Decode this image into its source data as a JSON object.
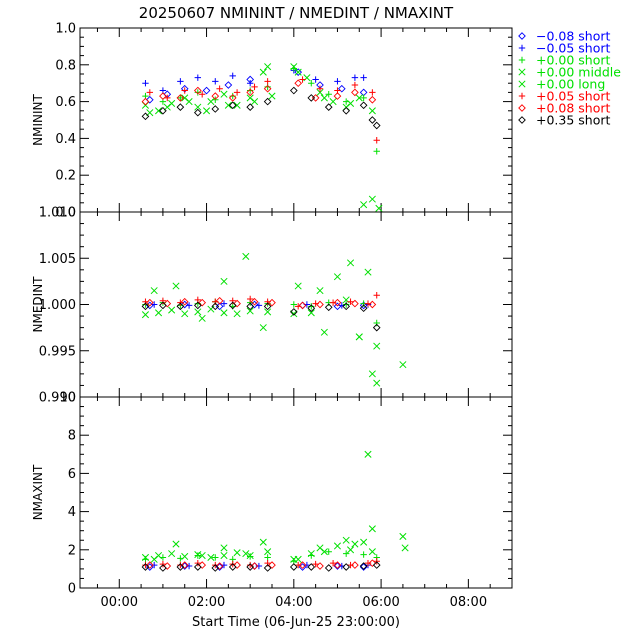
{
  "title": "20250607  NMININT  /  NMEDINT  /  NMAXINT",
  "xlabel": "Start Time (06-Jun-25 23:00:00)",
  "x_ticks": [
    "00:00",
    "02:00",
    "04:00",
    "06:00",
    "08:00"
  ],
  "x_tick_hours": [
    1,
    3,
    5,
    7,
    9
  ],
  "legend": [
    {
      "symbol": "diamond",
      "color": "#0000ff",
      "label": "−0.08 short"
    },
    {
      "symbol": "plus",
      "color": "#0000ff",
      "label": "−0.05 short"
    },
    {
      "symbol": "plus",
      "color": "#00e000",
      "label": "+0.00 short"
    },
    {
      "symbol": "cross",
      "color": "#00e000",
      "label": "+0.00 middle"
    },
    {
      "symbol": "cross",
      "color": "#00e000",
      "label": "+0.00 long"
    },
    {
      "symbol": "plus",
      "color": "#ff0000",
      "label": "+0.05 short"
    },
    {
      "symbol": "diamond",
      "color": "#ff0000",
      "label": "+0.08 short"
    },
    {
      "symbol": "diamond",
      "color": "#000000",
      "label": "+0.35 short"
    }
  ],
  "chart_data": [
    {
      "type": "scatter",
      "ylabel": "NMININT",
      "ylim": [
        0.0,
        1.0
      ],
      "y_ticks": [
        "0.0",
        "0.2",
        "0.4",
        "0.6",
        "0.8",
        "1.0"
      ],
      "x_unit": "hours since 06-Jun-25 23:00:00",
      "xlim": [
        0.1,
        10.0
      ],
      "series": [
        {
          "name": "−0.08 short",
          "color": "#0000ff",
          "symbol": "diamond",
          "x": [
            1.7,
            2.1,
            2.5,
            3.0,
            3.5,
            4.0,
            5.1,
            5.6,
            6.1,
            6.6
          ],
          "y": [
            0.61,
            0.64,
            0.67,
            0.66,
            0.69,
            0.72,
            0.76,
            0.69,
            0.67,
            0.65
          ]
        },
        {
          "name": "−0.05 short",
          "color": "#0000ff",
          "symbol": "plus",
          "x": [
            1.6,
            2.0,
            2.4,
            2.8,
            3.2,
            3.6,
            4.0,
            5.0,
            5.5,
            6.0,
            6.4,
            6.6
          ],
          "y": [
            0.7,
            0.66,
            0.71,
            0.73,
            0.71,
            0.74,
            0.7,
            0.77,
            0.72,
            0.71,
            0.73,
            0.73
          ]
        },
        {
          "name": "+0.00 short",
          "color": "#00e000",
          "symbol": "plus",
          "x": [
            1.6,
            2.0,
            2.4,
            2.8,
            3.2,
            3.6,
            4.0,
            4.4,
            5.0,
            5.4,
            5.8,
            6.2,
            6.6,
            6.9
          ],
          "y": [
            0.63,
            0.6,
            0.62,
            0.65,
            0.61,
            0.63,
            0.66,
            0.68,
            0.78,
            0.7,
            0.64,
            0.6,
            0.62,
            0.33
          ]
        },
        {
          "name": "+0.00 middle",
          "color": "#00e000",
          "symbol": "cross",
          "x": [
            1.6,
            1.9,
            2.2,
            2.5,
            2.8,
            3.1,
            3.4,
            3.7,
            4.0,
            4.3,
            4.5,
            5.0,
            5.3,
            5.6,
            5.9,
            6.2,
            6.5,
            6.8
          ],
          "y": [
            0.58,
            0.55,
            0.59,
            0.62,
            0.57,
            0.6,
            0.64,
            0.58,
            0.62,
            0.76,
            0.63,
            0.79,
            0.73,
            0.65,
            0.6,
            0.57,
            0.62,
            0.55
          ]
        },
        {
          "name": "+0.00 long",
          "color": "#00e000",
          "symbol": "cross",
          "x": [
            1.7,
            2.1,
            2.6,
            3.0,
            3.5,
            4.1,
            4.4,
            5.1,
            5.7,
            6.3,
            6.6,
            6.8,
            6.95
          ],
          "y": [
            0.54,
            0.57,
            0.6,
            0.55,
            0.58,
            0.6,
            0.79,
            0.76,
            0.62,
            0.59,
            0.04,
            0.07,
            0.02
          ]
        },
        {
          "name": "+0.05 short",
          "color": "#ff0000",
          "symbol": "plus",
          "x": [
            1.7,
            2.1,
            2.5,
            2.9,
            3.3,
            3.7,
            4.1,
            4.4,
            5.2,
            5.6,
            6.0,
            6.4,
            6.8,
            6.9
          ],
          "y": [
            0.65,
            0.62,
            0.66,
            0.64,
            0.67,
            0.65,
            0.68,
            0.71,
            0.72,
            0.67,
            0.66,
            0.69,
            0.65,
            0.39
          ]
        },
        {
          "name": "+0.08 short",
          "color": "#ff0000",
          "symbol": "diamond",
          "x": [
            1.6,
            2.0,
            2.4,
            2.8,
            3.2,
            3.6,
            4.0,
            4.4,
            5.1,
            5.5,
            6.0,
            6.4,
            6.8
          ],
          "y": [
            0.6,
            0.63,
            0.62,
            0.66,
            0.63,
            0.62,
            0.65,
            0.67,
            0.7,
            0.62,
            0.63,
            0.65,
            0.61
          ]
        },
        {
          "name": "+0.35 short",
          "color": "#000000",
          "symbol": "diamond",
          "x": [
            1.6,
            2.0,
            2.4,
            2.8,
            3.2,
            3.6,
            4.0,
            4.4,
            5.0,
            5.4,
            5.8,
            6.2,
            6.6,
            6.8,
            6.9
          ],
          "y": [
            0.52,
            0.55,
            0.57,
            0.54,
            0.56,
            0.58,
            0.57,
            0.6,
            0.66,
            0.62,
            0.57,
            0.55,
            0.58,
            0.5,
            0.47
          ]
        }
      ]
    },
    {
      "type": "scatter",
      "ylabel": "NMEDINT",
      "ylim": [
        0.99,
        1.01
      ],
      "y_ticks": [
        "0.990",
        "0.995",
        "1.000",
        "1.005",
        "1.010"
      ],
      "x_unit": "hours since 06-Jun-25 23:00:00",
      "xlim": [
        0.1,
        10.0
      ],
      "series": [
        {
          "name": "−0.08 short",
          "color": "#0000ff",
          "symbol": "diamond",
          "x": [
            1.7,
            2.5,
            3.3,
            4.1,
            5.2,
            6.0,
            6.6
          ],
          "y": [
            0.9999,
            1.0,
            0.9998,
            1.0,
            0.9999,
            0.9998,
            0.9999
          ]
        },
        {
          "name": "−0.05 short",
          "color": "#0000ff",
          "symbol": "plus",
          "x": [
            1.8,
            2.6,
            3.4,
            4.2,
            5.3,
            6.1,
            6.7
          ],
          "y": [
            1.0,
            0.9999,
            1.0001,
            0.9999,
            1.0,
            0.9999,
            1.0
          ]
        },
        {
          "name": "+0.00 short",
          "color": "#00e000",
          "symbol": "plus",
          "x": [
            1.6,
            2.0,
            2.4,
            2.8,
            3.2,
            3.6,
            4.0,
            4.4,
            5.0,
            5.4,
            5.8,
            6.2,
            6.6,
            6.9
          ],
          "y": [
            1.0,
            1.0002,
            0.9999,
            1.0001,
            1.0003,
            0.9998,
            1.0002,
            1.0001,
            1.0,
            0.9998,
            1.0002,
            1.0,
            1.0001,
            0.998
          ]
        },
        {
          "name": "+0.00 middle",
          "color": "#00e000",
          "symbol": "cross",
          "x": [
            1.6,
            1.9,
            2.2,
            2.5,
            2.8,
            3.1,
            3.4,
            3.7,
            4.0,
            4.4,
            5.0,
            5.4,
            5.7,
            6.0,
            6.3,
            6.5,
            6.7,
            6.9
          ],
          "y": [
            0.9989,
            0.9991,
            0.9994,
            0.999,
            0.9992,
            0.9995,
            0.9991,
            0.999,
            0.9993,
            0.9992,
            0.999,
            0.9991,
            0.997,
            1.003,
            1.0045,
            0.9965,
            1.0035,
            0.9955
          ]
        },
        {
          "name": "+0.00 long",
          "color": "#00e000",
          "symbol": "cross",
          "x": [
            1.8,
            2.3,
            2.9,
            3.4,
            3.9,
            4.3,
            5.1,
            5.6,
            6.2,
            6.5,
            6.8,
            6.9,
            7.5
          ],
          "y": [
            1.0015,
            1.002,
            0.9985,
            1.0025,
            1.0052,
            0.9975,
            1.002,
            1.0015,
            1.0005,
            0.9965,
            0.9925,
            0.9915,
            0.9935
          ]
        },
        {
          "name": "+0.05 short",
          "color": "#ff0000",
          "symbol": "plus",
          "x": [
            1.6,
            2.0,
            2.4,
            2.8,
            3.2,
            3.6,
            4.0,
            4.4,
            5.1,
            5.5,
            5.9,
            6.3,
            6.7,
            6.9
          ],
          "y": [
            1.0003,
            1.0004,
            1.0002,
            1.0005,
            1.0003,
            1.0004,
            1.0006,
            1.0003,
            0.9998,
            1.0001,
            1.0002,
            1.0003,
            1.0001,
            1.001
          ]
        },
        {
          "name": "+0.08 short",
          "color": "#ff0000",
          "symbol": "diamond",
          "x": [
            1.7,
            2.1,
            2.5,
            2.9,
            3.3,
            3.7,
            4.1,
            4.5,
            5.2,
            5.6,
            6.0,
            6.4,
            6.8
          ],
          "y": [
            1.0002,
            1.0001,
            1.0003,
            1.0002,
            1.0004,
            1.0001,
            1.0003,
            1.0002,
            0.9999,
            1.0,
            1.0002,
            1.0001,
            1.0
          ]
        },
        {
          "name": "+0.35 short",
          "color": "#000000",
          "symbol": "diamond",
          "x": [
            1.6,
            2.0,
            2.4,
            2.8,
            3.2,
            3.6,
            4.0,
            4.4,
            5.0,
            5.4,
            5.8,
            6.2,
            6.6,
            6.9
          ],
          "y": [
            0.9998,
            0.9999,
            0.9998,
            0.9999,
            0.9998,
            0.9999,
            0.9998,
            0.9998,
            0.9992,
            0.9996,
            0.9997,
            0.9998,
            0.9996,
            0.9975
          ]
        }
      ]
    },
    {
      "type": "scatter",
      "ylabel": "NMAXINT",
      "ylim": [
        0,
        10
      ],
      "y_ticks": [
        "0",
        "2",
        "4",
        "6",
        "8",
        "10"
      ],
      "x_unit": "hours since 06-Jun-25 23:00:00",
      "xlim": [
        0.1,
        10.0
      ],
      "series": [
        {
          "name": "−0.08 short",
          "color": "#0000ff",
          "symbol": "diamond",
          "x": [
            1.7,
            2.5,
            3.3,
            4.1,
            5.2,
            6.0,
            6.6
          ],
          "y": [
            1.1,
            1.15,
            1.1,
            1.15,
            1.1,
            1.15,
            1.1
          ]
        },
        {
          "name": "−0.05 short",
          "color": "#0000ff",
          "symbol": "plus",
          "x": [
            1.8,
            2.6,
            3.4,
            4.2,
            5.3,
            6.1,
            6.7
          ],
          "y": [
            1.2,
            1.15,
            1.2,
            1.15,
            1.2,
            1.15,
            1.2
          ]
        },
        {
          "name": "+0.00 short",
          "color": "#00e000",
          "symbol": "plus",
          "x": [
            1.6,
            2.0,
            2.4,
            2.8,
            3.2,
            3.6,
            4.0,
            4.4,
            5.0,
            5.4,
            5.8,
            6.2,
            6.6,
            6.9
          ],
          "y": [
            1.5,
            1.6,
            1.55,
            1.7,
            1.6,
            1.5,
            1.65,
            1.6,
            1.4,
            1.7,
            1.9,
            1.8,
            1.75,
            1.6
          ]
        },
        {
          "name": "+0.00 middle",
          "color": "#00e000",
          "symbol": "cross",
          "x": [
            1.6,
            1.9,
            2.2,
            2.5,
            2.8,
            3.1,
            3.4,
            3.7,
            4.0,
            4.4,
            5.0,
            5.4,
            5.7,
            6.0,
            6.3,
            6.6,
            6.8
          ],
          "y": [
            1.6,
            1.7,
            1.8,
            1.65,
            1.75,
            1.6,
            1.7,
            1.85,
            1.7,
            1.9,
            1.5,
            1.8,
            1.9,
            2.2,
            2.0,
            2.4,
            1.9
          ]
        },
        {
          "name": "+0.00 long",
          "color": "#00e000",
          "symbol": "cross",
          "x": [
            1.8,
            2.3,
            2.9,
            3.4,
            3.9,
            4.3,
            5.1,
            5.6,
            6.2,
            6.4,
            6.7,
            6.8,
            7.5,
            7.55
          ],
          "y": [
            1.5,
            2.3,
            1.7,
            2.1,
            1.8,
            2.4,
            1.5,
            2.1,
            2.5,
            2.3,
            7.0,
            3.1,
            2.7,
            2.1
          ]
        },
        {
          "name": "+0.05 short",
          "color": "#ff0000",
          "symbol": "plus",
          "x": [
            1.6,
            2.0,
            2.4,
            2.8,
            3.2,
            3.6,
            4.0,
            4.4,
            5.1,
            5.5,
            5.9,
            6.3,
            6.7,
            6.9
          ],
          "y": [
            1.2,
            1.25,
            1.2,
            1.3,
            1.2,
            1.25,
            1.2,
            1.3,
            1.2,
            1.25,
            1.3,
            1.2,
            1.3,
            1.4
          ]
        },
        {
          "name": "+0.08 short",
          "color": "#ff0000",
          "symbol": "diamond",
          "x": [
            1.7,
            2.1,
            2.5,
            2.9,
            3.3,
            3.7,
            4.1,
            4.5,
            5.2,
            5.6,
            6.0,
            6.4,
            6.8
          ],
          "y": [
            1.2,
            1.15,
            1.2,
            1.2,
            1.15,
            1.2,
            1.15,
            1.2,
            1.2,
            1.15,
            1.2,
            1.2,
            1.3
          ]
        },
        {
          "name": "+0.35 short",
          "color": "#000000",
          "symbol": "diamond",
          "x": [
            1.6,
            2.0,
            2.4,
            2.8,
            3.2,
            3.6,
            4.0,
            4.4,
            5.0,
            5.4,
            5.8,
            6.2,
            6.6,
            6.9
          ],
          "y": [
            1.1,
            1.05,
            1.1,
            1.1,
            1.05,
            1.1,
            1.1,
            1.05,
            1.1,
            1.1,
            1.05,
            1.1,
            1.15,
            1.2
          ]
        }
      ]
    }
  ]
}
